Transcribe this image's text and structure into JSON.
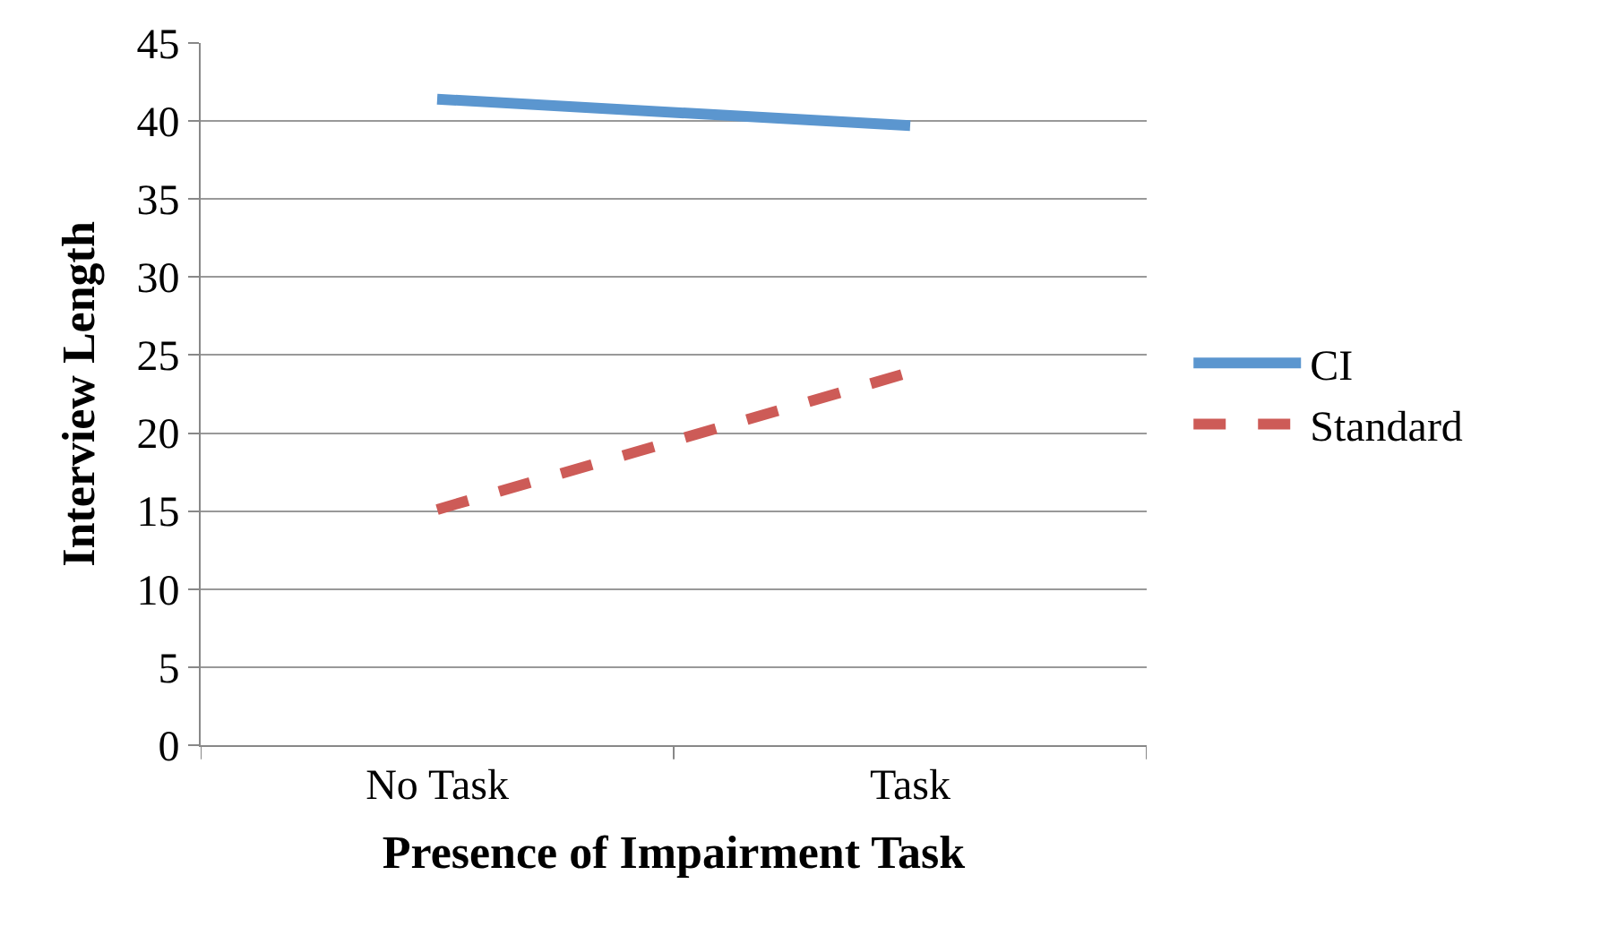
{
  "chart_data": {
    "type": "line",
    "xlabel": "Presence of Impairment Task",
    "ylabel": "Interview Length",
    "categories": [
      "No Task",
      "Task"
    ],
    "series": [
      {
        "name": "CI",
        "color": "#5b96cf",
        "values": [
          41.4,
          39.7
        ],
        "line_style": "solid"
      },
      {
        "name": "Standard",
        "color": "#cd5b57",
        "values": [
          15.1,
          23.9
        ],
        "line_style": "dashed"
      }
    ],
    "ylim": [
      0,
      45
    ],
    "yticks": [
      0,
      5,
      10,
      15,
      20,
      25,
      30,
      35,
      40,
      45
    ],
    "grid": "y",
    "legend": "right",
    "marker": "none"
  }
}
